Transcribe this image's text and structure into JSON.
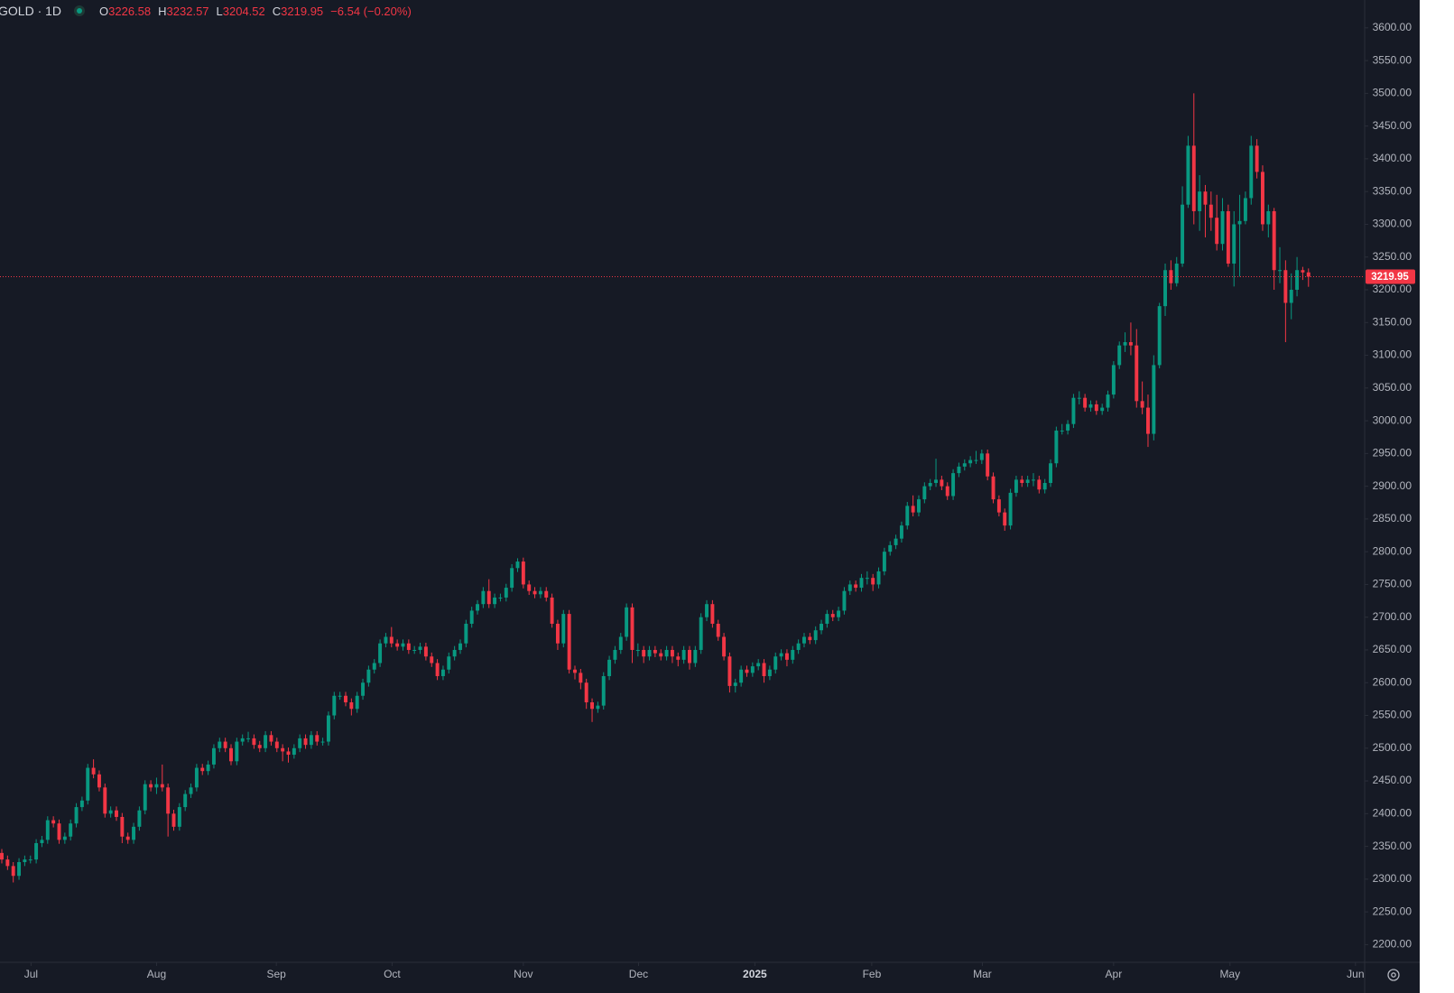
{
  "chart_data": {
    "type": "candlestick",
    "title": "GOLD · 1D",
    "ohlc_prefixes": [
      "O",
      "H",
      "L",
      "C"
    ],
    "change": "−6.54 (−0.20%)",
    "up_color": "#089981",
    "down_color": "#f23645",
    "open": [
      2340,
      2330,
      2320,
      2305,
      2326,
      2330,
      2330,
      2355,
      2360,
      2390,
      2385,
      2360,
      2365,
      2385,
      2410,
      2420,
      2470,
      2460,
      2440,
      2400,
      2405,
      2395,
      2365,
      2360,
      2380,
      2405,
      2445,
      2440,
      2445,
      2440,
      2400,
      2380,
      2410,
      2430,
      2440,
      2470,
      2465,
      2475,
      2500,
      2510,
      2500,
      2480,
      2510,
      2515,
      2515,
      2505,
      2500,
      2520,
      2510,
      2500,
      2495,
      2490,
      2500,
      2515,
      2505,
      2520,
      2510,
      2510,
      2550,
      2580,
      2580,
      2570,
      2560,
      2580,
      2600,
      2620,
      2630,
      2660,
      2670,
      2660,
      2655,
      2660,
      2650,
      2650,
      2655,
      2640,
      2630,
      2610,
      2620,
      2640,
      2650,
      2660,
      2690,
      2710,
      2720,
      2740,
      2720,
      2730,
      2730,
      2745,
      2775,
      2785,
      2750,
      2740,
      2735,
      2740,
      2730,
      2690,
      2660,
      2705,
      2620,
      2615,
      2600,
      2570,
      2560,
      2565,
      2610,
      2635,
      2650,
      2670,
      2715,
      2650,
      2650,
      2640,
      2650,
      2645,
      2640,
      2650,
      2640,
      2635,
      2650,
      2630,
      2650,
      2700,
      2720,
      2690,
      2670,
      2640,
      2595,
      2600,
      2620,
      2615,
      2625,
      2630,
      2610,
      2620,
      2640,
      2645,
      2635,
      2650,
      2660,
      2670,
      2665,
      2680,
      2690,
      2705,
      2700,
      2710,
      2740,
      2750,
      2745,
      2760,
      2760,
      2750,
      2770,
      2800,
      2810,
      2820,
      2840,
      2870,
      2860,
      2880,
      2900,
      2905,
      2910,
      2900,
      2885,
      2920,
      2930,
      2935,
      2940,
      2940,
      2950,
      2915,
      2880,
      2860,
      2840,
      2890,
      2910,
      2905,
      2910,
      2910,
      2895,
      2905,
      2935,
      2985,
      2985,
      2995,
      3035,
      3035,
      3020,
      3025,
      3015,
      3020,
      3040,
      3085,
      3115,
      3120,
      3115,
      3030,
      3020,
      2980,
      3085,
      3175,
      3230,
      3210,
      3240,
      3330,
      3420,
      3320,
      3350,
      3330,
      3310,
      3270,
      3320,
      3240,
      3300,
      3305,
      3340,
      3420,
      3380,
      3300,
      3320,
      3230,
      3230,
      3180,
      3200,
      3230,
      3226.58
    ],
    "high": [
      2346,
      2336,
      2326,
      2332,
      2336,
      2336,
      2361,
      2366,
      2396,
      2396,
      2391,
      2371,
      2391,
      2416,
      2426,
      2476,
      2483,
      2466,
      2446,
      2411,
      2411,
      2401,
      2371,
      2386,
      2411,
      2451,
      2451,
      2455,
      2475,
      2446,
      2406,
      2416,
      2436,
      2446,
      2476,
      2476,
      2481,
      2506,
      2516,
      2516,
      2506,
      2516,
      2521,
      2525,
      2521,
      2511,
      2526,
      2526,
      2516,
      2506,
      2501,
      2506,
      2521,
      2521,
      2526,
      2526,
      2516,
      2556,
      2586,
      2586,
      2586,
      2576,
      2586,
      2606,
      2626,
      2636,
      2666,
      2676,
      2685,
      2666,
      2666,
      2666,
      2656,
      2661,
      2661,
      2646,
      2636,
      2626,
      2646,
      2656,
      2666,
      2696,
      2716,
      2726,
      2746,
      2758,
      2736,
      2736,
      2751,
      2781,
      2790,
      2791,
      2756,
      2746,
      2746,
      2746,
      2736,
      2696,
      2711,
      2711,
      2626,
      2621,
      2606,
      2576,
      2571,
      2616,
      2641,
      2656,
      2676,
      2721,
      2721,
      2660,
      2656,
      2656,
      2656,
      2651,
      2656,
      2656,
      2646,
      2656,
      2656,
      2656,
      2706,
      2726,
      2726,
      2696,
      2676,
      2646,
      2606,
      2626,
      2626,
      2631,
      2636,
      2636,
      2626,
      2646,
      2651,
      2651,
      2656,
      2666,
      2676,
      2676,
      2686,
      2696,
      2711,
      2711,
      2716,
      2746,
      2756,
      2756,
      2766,
      2770,
      2766,
      2776,
      2806,
      2816,
      2826,
      2846,
      2876,
      2886,
      2886,
      2906,
      2911,
      2942,
      2916,
      2906,
      2926,
      2936,
      2941,
      2946,
      2954,
      2956,
      2956,
      2921,
      2886,
      2866,
      2896,
      2916,
      2916,
      2916,
      2920,
      2916,
      2911,
      2941,
      2991,
      2995,
      3001,
      3041,
      3045,
      3041,
      3031,
      3031,
      3026,
      3046,
      3091,
      3121,
      3135,
      3150,
      3140,
      3060,
      3040,
      3100,
      3180,
      3240,
      3245,
      3250,
      3358,
      3435,
      3500,
      3375,
      3360,
      3350,
      3345,
      3340,
      3330,
      3320,
      3345,
      3350,
      3435,
      3430,
      3390,
      3330,
      3325,
      3265,
      3245,
      3225,
      3250,
      3235,
      3232.57
    ],
    "low": [
      2324,
      2314,
      2295,
      2299,
      2320,
      2324,
      2324,
      2349,
      2354,
      2379,
      2354,
      2354,
      2359,
      2379,
      2404,
      2414,
      2454,
      2434,
      2394,
      2394,
      2389,
      2355,
      2354,
      2354,
      2374,
      2399,
      2434,
      2430,
      2434,
      2365,
      2374,
      2374,
      2404,
      2424,
      2434,
      2459,
      2459,
      2469,
      2494,
      2494,
      2474,
      2474,
      2504,
      2509,
      2499,
      2494,
      2494,
      2504,
      2494,
      2480,
      2478,
      2484,
      2494,
      2499,
      2499,
      2504,
      2504,
      2504,
      2544,
      2574,
      2564,
      2550,
      2554,
      2574,
      2594,
      2614,
      2624,
      2654,
      2654,
      2649,
      2649,
      2644,
      2644,
      2644,
      2634,
      2624,
      2604,
      2604,
      2614,
      2634,
      2644,
      2654,
      2684,
      2704,
      2714,
      2714,
      2714,
      2724,
      2724,
      2739,
      2769,
      2744,
      2734,
      2729,
      2729,
      2724,
      2684,
      2650,
      2654,
      2614,
      2605,
      2590,
      2560,
      2540,
      2554,
      2559,
      2604,
      2629,
      2644,
      2664,
      2630,
      2640,
      2630,
      2634,
      2639,
      2634,
      2634,
      2630,
      2625,
      2629,
      2620,
      2624,
      2644,
      2694,
      2684,
      2664,
      2634,
      2585,
      2585,
      2594,
      2609,
      2609,
      2619,
      2600,
      2604,
      2614,
      2634,
      2625,
      2629,
      2644,
      2654,
      2659,
      2659,
      2674,
      2684,
      2694,
      2694,
      2704,
      2734,
      2739,
      2739,
      2750,
      2740,
      2744,
      2764,
      2794,
      2804,
      2814,
      2834,
      2854,
      2854,
      2874,
      2894,
      2899,
      2894,
      2879,
      2879,
      2914,
      2924,
      2929,
      2934,
      2934,
      2909,
      2874,
      2854,
      2832,
      2834,
      2884,
      2899,
      2899,
      2900,
      2889,
      2889,
      2899,
      2929,
      2979,
      2979,
      2989,
      3025,
      3014,
      3014,
      3009,
      3009,
      3014,
      3034,
      3079,
      3105,
      3100,
      3020,
      3010,
      2960,
      2970,
      3080,
      3160,
      3200,
      3205,
      3235,
      3325,
      3300,
      3290,
      3280,
      3290,
      3260,
      3260,
      3235,
      3205,
      3220,
      3300,
      3330,
      3370,
      3290,
      3280,
      3200,
      3210,
      3120,
      3155,
      3190,
      3215,
      3204.52
    ],
    "close": [
      2330,
      2320,
      2305,
      2326,
      2330,
      2330,
      2355,
      2360,
      2390,
      2385,
      2360,
      2365,
      2385,
      2410,
      2420,
      2470,
      2460,
      2440,
      2400,
      2405,
      2395,
      2365,
      2360,
      2380,
      2405,
      2445,
      2440,
      2445,
      2440,
      2400,
      2380,
      2410,
      2430,
      2440,
      2470,
      2465,
      2475,
      2500,
      2510,
      2500,
      2480,
      2510,
      2515,
      2515,
      2505,
      2500,
      2520,
      2510,
      2500,
      2495,
      2490,
      2500,
      2515,
      2505,
      2520,
      2510,
      2510,
      2550,
      2580,
      2580,
      2570,
      2560,
      2580,
      2600,
      2620,
      2630,
      2660,
      2670,
      2660,
      2655,
      2660,
      2650,
      2650,
      2655,
      2640,
      2630,
      2610,
      2620,
      2640,
      2650,
      2660,
      2690,
      2710,
      2720,
      2740,
      2720,
      2730,
      2730,
      2745,
      2775,
      2785,
      2750,
      2740,
      2735,
      2740,
      2730,
      2690,
      2660,
      2705,
      2620,
      2615,
      2600,
      2570,
      2560,
      2565,
      2610,
      2635,
      2650,
      2670,
      2715,
      2650,
      2650,
      2640,
      2650,
      2645,
      2640,
      2650,
      2640,
      2635,
      2650,
      2630,
      2650,
      2700,
      2720,
      2690,
      2670,
      2640,
      2595,
      2600,
      2620,
      2615,
      2625,
      2630,
      2610,
      2620,
      2640,
      2645,
      2635,
      2650,
      2660,
      2670,
      2665,
      2680,
      2690,
      2705,
      2700,
      2710,
      2740,
      2750,
      2745,
      2760,
      2760,
      2750,
      2770,
      2800,
      2810,
      2820,
      2840,
      2870,
      2860,
      2880,
      2900,
      2905,
      2910,
      2900,
      2885,
      2920,
      2930,
      2935,
      2940,
      2940,
      2950,
      2915,
      2880,
      2860,
      2840,
      2890,
      2910,
      2905,
      2910,
      2910,
      2895,
      2905,
      2935,
      2985,
      2985,
      2995,
      3035,
      3035,
      3020,
      3025,
      3015,
      3020,
      3040,
      3085,
      3115,
      3120,
      3115,
      3030,
      3020,
      2980,
      3085,
      3175,
      3230,
      3210,
      3240,
      3330,
      3420,
      3320,
      3350,
      3330,
      3310,
      3270,
      3320,
      3240,
      3300,
      3305,
      3340,
      3420,
      3380,
      3300,
      3320,
      3230,
      3230,
      3180,
      3200,
      3230,
      3226.49,
      3219.95
    ],
    "xlim": [
      -0.315,
      237.8
    ],
    "xticks": [
      {
        "value": 5.1,
        "label": "Jul"
      },
      {
        "value": 27.0,
        "label": "Aug"
      },
      {
        "value": 47.9,
        "label": "Sep"
      },
      {
        "value": 68.1,
        "label": "Oct"
      },
      {
        "value": 91.0,
        "label": "Nov"
      },
      {
        "value": 111.1,
        "label": "Dec"
      },
      {
        "value": 131.4,
        "label": "2025"
      },
      {
        "value": 151.8,
        "label": "Feb"
      },
      {
        "value": 171.1,
        "label": "Mar"
      },
      {
        "value": 194.0,
        "label": "Apr"
      },
      {
        "value": 214.3,
        "label": "May"
      },
      {
        "value": 236.2,
        "label": "Jun"
      }
    ],
    "ylim": [
      2173,
      3642.5
    ],
    "yticks": [
      {
        "value": 2200,
        "label": "2200.00"
      },
      {
        "value": 2250,
        "label": "2250.00"
      },
      {
        "value": 2300,
        "label": "2300.00"
      },
      {
        "value": 2350,
        "label": "2350.00"
      },
      {
        "value": 2400,
        "label": "2400.00"
      },
      {
        "value": 2450,
        "label": "2450.00"
      },
      {
        "value": 2500,
        "label": "2500.00"
      },
      {
        "value": 2550,
        "label": "2550.00"
      },
      {
        "value": 2600,
        "label": "2600.00"
      },
      {
        "value": 2650,
        "label": "2650.00"
      },
      {
        "value": 2700,
        "label": "2700.00"
      },
      {
        "value": 2750,
        "label": "2750.00"
      },
      {
        "value": 2800,
        "label": "2800.00"
      },
      {
        "value": 2850,
        "label": "2850.00"
      },
      {
        "value": 2900,
        "label": "2900.00"
      },
      {
        "value": 2950,
        "label": "2950.00"
      },
      {
        "value": 3000,
        "label": "3000.00"
      },
      {
        "value": 3050,
        "label": "3050.00"
      },
      {
        "value": 3100,
        "label": "3100.00"
      },
      {
        "value": 3150,
        "label": "3150.00"
      },
      {
        "value": 3200,
        "label": "3200.00"
      },
      {
        "value": 3250,
        "label": "3250.00"
      },
      {
        "value": 3300,
        "label": "3300.00"
      },
      {
        "value": 3350,
        "label": "3350.00"
      },
      {
        "value": 3400,
        "label": "3400.00"
      },
      {
        "value": 3450,
        "label": "3450.00"
      },
      {
        "value": 3500,
        "label": "3500.00"
      },
      {
        "value": 3550,
        "label": "3550.00"
      },
      {
        "value": 3600,
        "label": "3600.00"
      }
    ],
    "grid": false
  }
}
